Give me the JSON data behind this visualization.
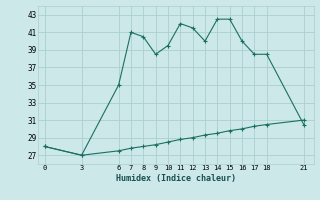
{
  "xlabel": "Humidex (Indice chaleur)",
  "background_color": "#cce8e8",
  "grid_color": "#aacfcf",
  "line_color": "#1a7060",
  "x_ticks": [
    0,
    3,
    6,
    7,
    8,
    9,
    10,
    11,
    12,
    13,
    14,
    15,
    16,
    17,
    18,
    21
  ],
  "ylim": [
    26.0,
    44.0
  ],
  "yticks": [
    27,
    29,
    31,
    33,
    35,
    37,
    39,
    41,
    43
  ],
  "line1_x": [
    0,
    3,
    6,
    7,
    8,
    9,
    10,
    11,
    12,
    13,
    14,
    15,
    16,
    17,
    18,
    21
  ],
  "line1_y": [
    28,
    27,
    35,
    41,
    40.5,
    38.5,
    39.5,
    42,
    41.5,
    40,
    42.5,
    42.5,
    40,
    38.5,
    38.5,
    30.5
  ],
  "line2_x": [
    0,
    3,
    6,
    7,
    8,
    9,
    10,
    11,
    12,
    13,
    14,
    15,
    16,
    17,
    18,
    21
  ],
  "line2_y": [
    28,
    27,
    27.5,
    27.8,
    28.0,
    28.2,
    28.5,
    28.8,
    29.0,
    29.3,
    29.5,
    29.8,
    30.0,
    30.3,
    30.5,
    31.0
  ],
  "figsize": [
    3.2,
    2.0
  ],
  "dpi": 100
}
